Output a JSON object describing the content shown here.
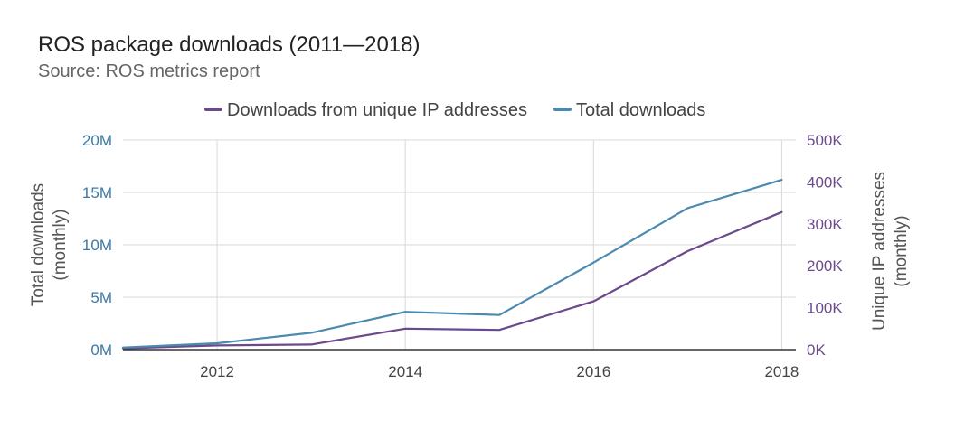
{
  "header": {
    "title": "ROS package downloads (2011—2018)",
    "subtitle": "Source: ROS metrics report"
  },
  "colors": {
    "total": "#4a8ab0",
    "unique": "#6a4a8c",
    "left_axis_text": "#3a7aa8",
    "right_axis_text": "#6a4a8c",
    "grid": "#d8d8d8",
    "baseline": "#333333",
    "x_tick_text": "#444444"
  },
  "chart_data": {
    "type": "line",
    "title": "ROS package downloads (2011—2018)",
    "subtitle": "Source: ROS metrics report",
    "x": [
      2011,
      2012,
      2013,
      2014,
      2015,
      2016,
      2017,
      2018
    ],
    "xlim": [
      2011,
      2018.15
    ],
    "x_ticks": [
      2012,
      2014,
      2016,
      2018
    ],
    "x_tick_labels": [
      "2012",
      "2014",
      "2016",
      "2018"
    ],
    "series": [
      {
        "name": "Downloads from unique IP addresses",
        "axis": "right",
        "values": [
          3000,
          10000,
          12000,
          50000,
          47000,
          115000,
          235000,
          328000
        ]
      },
      {
        "name": "Total downloads",
        "axis": "left",
        "values": [
          200000,
          600000,
          1600000,
          3600000,
          3300000,
          8300000,
          13500000,
          16200000
        ]
      }
    ],
    "left_axis": {
      "label_lines": [
        "Total downloads",
        "(monthly)"
      ],
      "ylim": [
        0,
        20000000
      ],
      "ticks": [
        0,
        5000000,
        10000000,
        15000000,
        20000000
      ],
      "tick_labels": [
        "0M",
        "5M",
        "10M",
        "15M",
        "20M"
      ]
    },
    "right_axis": {
      "label_lines": [
        "Unique IP addresses",
        "(monthly)"
      ],
      "ylim": [
        0,
        500000
      ],
      "ticks": [
        0,
        100000,
        200000,
        300000,
        400000,
        500000
      ],
      "tick_labels": [
        "0K",
        "100K",
        "200K",
        "300K",
        "400K",
        "500K"
      ]
    },
    "legend_position": "top-center",
    "grid": true
  }
}
